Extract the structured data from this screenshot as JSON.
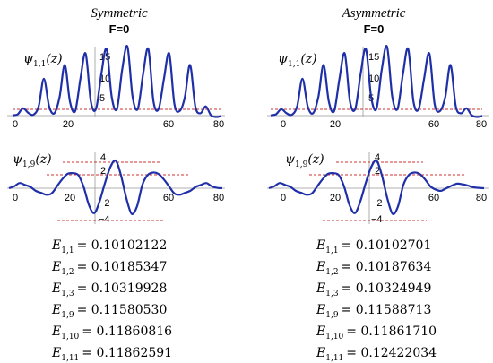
{
  "panels": [
    {
      "title": "Symmetric",
      "condition": "F=0",
      "top_label": {
        "symbol": "ψ",
        "sub": "1,1",
        "arg": "(z)"
      },
      "top_yticks": [
        "15",
        "10",
        "5"
      ],
      "top_xticks": [
        "0",
        "20",
        "60",
        "80"
      ],
      "bottom_label": {
        "symbol": "ψ",
        "sub": "1,9",
        "arg": "(z)"
      },
      "bottom_yticks": [
        "4",
        "2",
        "−2",
        "−4"
      ],
      "bottom_xticks": [
        "0",
        "20",
        "60",
        "80"
      ],
      "energies": [
        {
          "sub": "1,1",
          "value": "= 0.10102122"
        },
        {
          "sub": "1,2",
          "value": "= 0.10185347"
        },
        {
          "sub": "1,3",
          "value": "= 0.10319928"
        },
        {
          "sub": "1,9",
          "value": "= 0.11580530"
        },
        {
          "sub": "1,10",
          "value": "= 0.11860816"
        },
        {
          "sub": "1,11",
          "value": "= 0.11862591"
        }
      ]
    },
    {
      "title": "Asymmetric",
      "condition": "F=0",
      "top_label": {
        "symbol": "ψ",
        "sub": "1,1",
        "arg": "(z)"
      },
      "top_yticks": [
        "15",
        "10",
        "5"
      ],
      "top_xticks": [
        "0",
        "20",
        "60",
        "80"
      ],
      "bottom_label": {
        "symbol": "ψ",
        "sub": "1,9",
        "arg": "(z)"
      },
      "bottom_yticks": [
        "4",
        "2",
        "−2",
        "−4"
      ],
      "bottom_xticks": [
        "0",
        "20",
        "60",
        "80"
      ],
      "energies": [
        {
          "sub": "1,1",
          "value": "= 0.10102701"
        },
        {
          "sub": "1,2",
          "value": "= 0.10187634"
        },
        {
          "sub": "1,3",
          "value": "= 0.10324949"
        },
        {
          "sub": "1,9",
          "value": "= 0.11588713"
        },
        {
          "sub": "1,10",
          "value": "= 0.11861710"
        },
        {
          "sub": "1,11",
          "value": "= 0.12422034"
        }
      ]
    }
  ],
  "energy_symbol": "E",
  "chart_data": [
    {
      "type": "line",
      "name": "symmetric-psi-1-1",
      "xlim": [
        0,
        80
      ],
      "ylim": [
        -2,
        16
      ],
      "reference_line_y": 0,
      "x": [
        0,
        2,
        4,
        6,
        8,
        10,
        12,
        14,
        16,
        18,
        20,
        22,
        24,
        26,
        28,
        30,
        32,
        34,
        36,
        38,
        40,
        42,
        44,
        46,
        48,
        50,
        52,
        54,
        56,
        58,
        60,
        62,
        64,
        66,
        68,
        70,
        72,
        74,
        76,
        78,
        80
      ],
      "y": [
        0.05,
        0.3,
        1.6,
        0.6,
        0.2,
        2,
        8,
        2,
        0.5,
        4,
        11,
        3,
        1,
        8,
        13.5,
        3,
        1.5,
        9,
        14.5,
        4,
        1.5,
        10,
        15,
        4,
        1.5,
        9,
        14.5,
        3,
        1.5,
        8,
        13.5,
        2.5,
        1,
        4,
        11,
        2,
        0.5,
        2,
        0.1,
        -0.3,
        -0.05
      ]
    },
    {
      "type": "line",
      "name": "symmetric-psi-1-9",
      "xlim": [
        0,
        80
      ],
      "ylim": [
        -4.8,
        4.8
      ],
      "reference_lines_y": [
        4,
        2,
        -4
      ],
      "x": [
        0,
        2,
        4,
        6,
        8,
        10,
        12,
        14,
        16,
        18,
        20,
        22,
        24,
        26,
        28,
        30,
        32,
        34,
        36,
        38,
        40,
        42,
        44,
        46,
        48,
        50,
        52,
        54,
        56,
        58,
        60,
        62,
        64,
        66,
        68,
        70,
        72,
        74,
        76,
        78,
        80
      ],
      "y": [
        0,
        0.3,
        0.8,
        0.5,
        0.2,
        -0.4,
        -0.7,
        -1,
        -0.8,
        0.3,
        1.4,
        2.2,
        2.3,
        2,
        0.2,
        -2.6,
        -3.8,
        -2,
        0.8,
        3.2,
        4.2,
        2,
        -1.5,
        -3.9,
        -2.8,
        0.5,
        2,
        2.4,
        2.2,
        1.4,
        0.3,
        -0.8,
        -1,
        -0.7,
        -0.4,
        0.2,
        0.5,
        0.8,
        0.3,
        0.05,
        0
      ]
    },
    {
      "type": "line",
      "name": "asymmetric-psi-1-1",
      "xlim": [
        0,
        80
      ],
      "ylim": [
        -2,
        16
      ],
      "reference_line_y": 0,
      "x": [
        0,
        2,
        4,
        6,
        8,
        10,
        12,
        14,
        16,
        18,
        20,
        22,
        24,
        26,
        28,
        30,
        32,
        34,
        36,
        38,
        40,
        42,
        44,
        46,
        48,
        50,
        52,
        54,
        56,
        58,
        60,
        62,
        64,
        66,
        68,
        70,
        72,
        74,
        76,
        78,
        80
      ],
      "y": [
        0.05,
        0.3,
        1.4,
        0.5,
        0.2,
        2,
        8,
        2,
        0.5,
        4,
        11,
        3,
        1,
        8,
        13.5,
        3,
        1.5,
        9,
        14.5,
        4,
        1.5,
        10,
        15,
        4,
        1.5,
        9,
        14.5,
        3,
        1.5,
        8,
        13.5,
        2.5,
        1,
        4,
        11,
        2,
        0.5,
        1.6,
        0.1,
        -0.3,
        -0.05
      ]
    },
    {
      "type": "line",
      "name": "asymmetric-psi-1-9",
      "xlim": [
        0,
        80
      ],
      "ylim": [
        -4.8,
        4.8
      ],
      "reference_lines_y": [
        4,
        2,
        -4
      ],
      "x": [
        0,
        2,
        4,
        6,
        8,
        10,
        12,
        14,
        16,
        18,
        20,
        22,
        24,
        26,
        28,
        30,
        32,
        34,
        36,
        38,
        40,
        42,
        44,
        46,
        48,
        50,
        52,
        54,
        56,
        58,
        60,
        62,
        64,
        66,
        68,
        70,
        72,
        74,
        76,
        78,
        80
      ],
      "y": [
        0,
        0.3,
        0.8,
        0.5,
        0.2,
        -0.4,
        -0.7,
        -1,
        -0.8,
        0.3,
        1.4,
        2.2,
        2.3,
        2,
        0.2,
        -2.6,
        -3.8,
        -2,
        0.8,
        3.2,
        4.2,
        2,
        -1.5,
        -3.9,
        -2.8,
        0.5,
        2,
        2.4,
        2.2,
        1.4,
        0.3,
        -0.2,
        -0.4,
        0,
        0.4,
        0.7,
        0.6,
        0.4,
        0.15,
        0.05,
        0
      ]
    }
  ]
}
